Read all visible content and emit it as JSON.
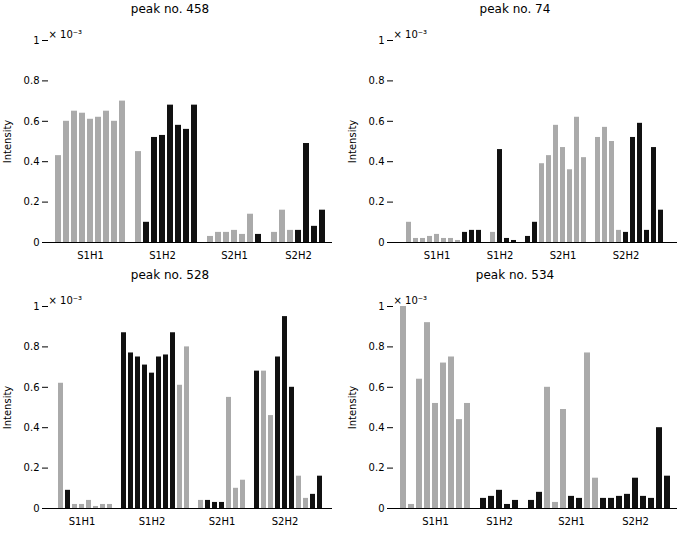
{
  "chart_data": [
    {
      "type": "bar",
      "title": "peak no. 458",
      "y_label": "Intensity",
      "annotation": "× 10⁻³",
      "categories": [
        null,
        null,
        null,
        null,
        "S1H1",
        null,
        null,
        null,
        null,
        null,
        null,
        null,
        null,
        "S1H2",
        null,
        null,
        null,
        null,
        null,
        null,
        null,
        null,
        "S2H1",
        null,
        null,
        null,
        null,
        null,
        null,
        null,
        "S2H2",
        null,
        null,
        null
      ],
      "values": [
        0.43,
        0.6,
        0.65,
        0.64,
        0.61,
        0.62,
        0.65,
        0.6,
        0.7,
        null,
        0.45,
        0.1,
        0.52,
        0.53,
        0.68,
        0.58,
        0.56,
        0.68,
        null,
        0.03,
        0.05,
        0.05,
        0.06,
        0.04,
        0.14,
        0.04,
        null,
        0.05,
        0.16,
        0.06,
        0.06,
        0.49,
        0.08,
        0.16
      ],
      "colors": [
        "#aaaaaa",
        "#aaaaaa",
        "#aaaaaa",
        "#aaaaaa",
        "#aaaaaa",
        "#aaaaaa",
        "#aaaaaa",
        "#aaaaaa",
        "#aaaaaa",
        null,
        "#aaaaaa",
        "#111111",
        "#111111",
        "#111111",
        "#111111",
        "#111111",
        "#111111",
        "#111111",
        null,
        "#aaaaaa",
        "#aaaaaa",
        "#aaaaaa",
        "#aaaaaa",
        "#aaaaaa",
        "#aaaaaa",
        "#111111",
        null,
        "#aaaaaa",
        "#aaaaaa",
        "#aaaaaa",
        "#111111",
        "#111111",
        "#111111",
        "#111111"
      ],
      "ylim": [
        0,
        1
      ],
      "yticks": [
        0,
        0.2,
        0.4,
        0.6,
        0.8,
        1
      ]
    },
    {
      "type": "bar",
      "title": "peak no. 74",
      "y_label": "Intensity",
      "annotation": "× 10⁻³",
      "categories": [
        null,
        null,
        null,
        null,
        "S1H1",
        null,
        null,
        null,
        null,
        null,
        null,
        null,
        null,
        "S1H2",
        null,
        null,
        null,
        null,
        null,
        null,
        null,
        null,
        "S2H1",
        null,
        null,
        null,
        null,
        null,
        null,
        null,
        null,
        "S2H2",
        null,
        null,
        null,
        null,
        null
      ],
      "values": [
        0.1,
        0.02,
        0.02,
        0.03,
        0.04,
        0.02,
        0.02,
        0.01,
        0.05,
        0.06,
        0.06,
        null,
        0.05,
        0.46,
        0.02,
        0.01,
        null,
        0.03,
        0.1,
        0.39,
        0.43,
        0.58,
        0.47,
        0.36,
        0.62,
        0.42,
        null,
        0.52,
        0.57,
        0.5,
        0.06,
        0.05,
        0.52,
        0.59,
        0.06,
        0.47,
        0.16
      ],
      "colors": [
        "#aaaaaa",
        "#aaaaaa",
        "#aaaaaa",
        "#aaaaaa",
        "#aaaaaa",
        "#aaaaaa",
        "#aaaaaa",
        "#aaaaaa",
        "#111111",
        "#111111",
        "#111111",
        null,
        "#aaaaaa",
        "#111111",
        "#111111",
        "#111111",
        null,
        "#111111",
        "#111111",
        "#aaaaaa",
        "#aaaaaa",
        "#aaaaaa",
        "#aaaaaa",
        "#aaaaaa",
        "#aaaaaa",
        "#aaaaaa",
        null,
        "#aaaaaa",
        "#aaaaaa",
        "#aaaaaa",
        "#aaaaaa",
        "#111111",
        "#111111",
        "#111111",
        "#111111",
        "#111111",
        "#111111"
      ],
      "ylim": [
        0,
        1
      ],
      "yticks": [
        0,
        0.2,
        0.4,
        0.6,
        0.8,
        1
      ]
    },
    {
      "type": "bar",
      "title": "peak no. 528",
      "y_label": "Intensity",
      "annotation": "× 10⁻³",
      "categories": [
        null,
        null,
        null,
        "S1H1",
        null,
        null,
        null,
        null,
        null,
        null,
        null,
        null,
        null,
        "S1H2",
        null,
        null,
        null,
        null,
        null,
        null,
        null,
        null,
        null,
        "S2H1",
        null,
        null,
        null,
        null,
        null,
        null,
        null,
        null,
        "S2H2",
        null,
        null,
        null,
        null,
        null
      ],
      "values": [
        0.62,
        0.09,
        0.02,
        0.02,
        0.04,
        0.01,
        0.02,
        0.02,
        null,
        0.87,
        0.77,
        0.75,
        0.71,
        0.67,
        0.75,
        0.76,
        0.87,
        0.61,
        0.8,
        null,
        0.04,
        0.04,
        0.03,
        0.03,
        0.55,
        0.1,
        0.14,
        null,
        0.68,
        0.68,
        0.46,
        0.75,
        0.95,
        0.6,
        0.16,
        0.05,
        0.07,
        0.16
      ],
      "colors": [
        "#aaaaaa",
        "#111111",
        "#aaaaaa",
        "#aaaaaa",
        "#aaaaaa",
        "#aaaaaa",
        "#aaaaaa",
        "#aaaaaa",
        null,
        "#111111",
        "#111111",
        "#111111",
        "#111111",
        "#111111",
        "#111111",
        "#111111",
        "#111111",
        "#aaaaaa",
        "#aaaaaa",
        null,
        "#aaaaaa",
        "#111111",
        "#111111",
        "#111111",
        "#aaaaaa",
        "#aaaaaa",
        "#aaaaaa",
        null,
        "#111111",
        "#aaaaaa",
        "#aaaaaa",
        "#111111",
        "#111111",
        "#111111",
        "#aaaaaa",
        "#aaaaaa",
        "#111111",
        "#111111"
      ],
      "ylim": [
        0,
        1
      ],
      "yticks": [
        0,
        0.2,
        0.4,
        0.6,
        0.8,
        1
      ]
    },
    {
      "type": "bar",
      "title": "peak no. 534",
      "y_label": "Intensity",
      "annotation": "× 10⁻³",
      "categories": [
        null,
        null,
        null,
        null,
        "S1H1",
        null,
        null,
        null,
        null,
        null,
        null,
        null,
        "S1H2",
        null,
        null,
        null,
        null,
        null,
        null,
        null,
        null,
        "S2H1",
        null,
        null,
        null,
        null,
        null,
        null,
        null,
        "S2H2",
        null,
        null,
        null,
        null
      ],
      "values": [
        1.0,
        0.02,
        0.64,
        0.92,
        0.52,
        0.72,
        0.75,
        0.44,
        0.52,
        null,
        0.05,
        0.06,
        0.09,
        0.02,
        0.04,
        null,
        0.04,
        0.08,
        0.6,
        0.03,
        0.49,
        0.06,
        0.05,
        0.77,
        0.15,
        0.05,
        0.05,
        0.06,
        0.07,
        0.15,
        0.06,
        0.05,
        0.4,
        0.16
      ],
      "colors": [
        "#aaaaaa",
        "#aaaaaa",
        "#aaaaaa",
        "#aaaaaa",
        "#aaaaaa",
        "#aaaaaa",
        "#aaaaaa",
        "#aaaaaa",
        "#aaaaaa",
        null,
        "#111111",
        "#111111",
        "#111111",
        "#111111",
        "#111111",
        null,
        "#111111",
        "#111111",
        "#aaaaaa",
        "#aaaaaa",
        "#aaaaaa",
        "#111111",
        "#111111",
        "#aaaaaa",
        "#aaaaaa",
        "#111111",
        "#111111",
        "#111111",
        "#111111",
        "#111111",
        "#111111",
        "#111111",
        "#111111",
        "#111111"
      ],
      "ylim": [
        0,
        1
      ],
      "yticks": [
        0,
        0.2,
        0.4,
        0.6,
        0.8,
        1
      ]
    }
  ]
}
